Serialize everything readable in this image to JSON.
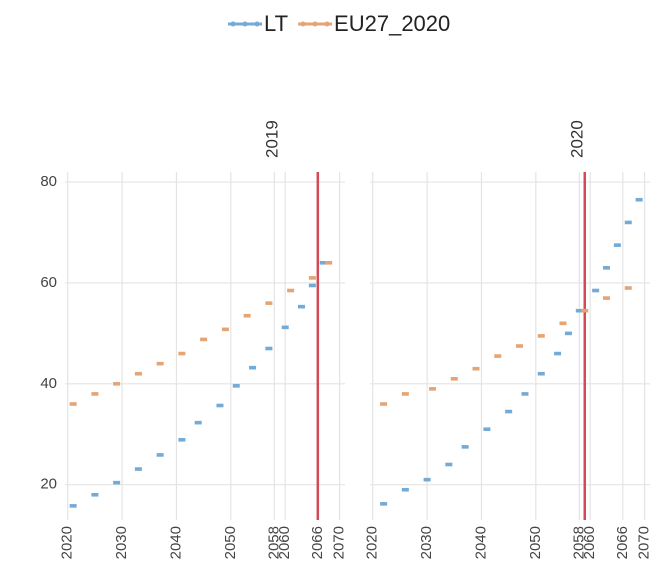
{
  "chart_data": [
    {
      "type": "scatter",
      "title": "2019",
      "xlim": [
        2019.5,
        2071
      ],
      "ylim": [
        13,
        82
      ],
      "xticks": [
        2020,
        2030,
        2040,
        2050,
        2058,
        2060,
        2066,
        2070
      ],
      "yticks": [
        20,
        40,
        60,
        80
      ],
      "grid": true,
      "vline": 2066,
      "vline_color": "#d24a55",
      "legend": "top",
      "series": [
        {
          "name": "LT",
          "color": "#74aad6",
          "x": [
            2021,
            2025,
            2029,
            2033,
            2037,
            2041,
            2044,
            2048,
            2051,
            2054,
            2057,
            2060,
            2063,
            2065,
            2067
          ],
          "values": [
            15.8,
            18,
            20.4,
            23.1,
            25.9,
            28.9,
            32.3,
            35.7,
            39.6,
            43.2,
            47,
            51.2,
            55.3,
            59.5,
            64
          ]
        },
        {
          "name": "EU27_2020",
          "color": "#e4a474",
          "x": [
            2021,
            2025,
            2029,
            2033,
            2037,
            2041,
            2045,
            2049,
            2053,
            2057,
            2061,
            2065,
            2068
          ],
          "values": [
            36,
            38,
            40,
            42,
            44,
            46,
            48.8,
            50.8,
            53.5,
            56,
            58.5,
            61,
            64
          ]
        }
      ]
    },
    {
      "type": "scatter",
      "title": "2020",
      "xlim": [
        2019.5,
        2071
      ],
      "ylim": [
        13,
        82
      ],
      "xticks": [
        2020,
        2030,
        2040,
        2050,
        2058,
        2060,
        2066,
        2070
      ],
      "yticks": [
        20,
        40,
        60,
        80
      ],
      "grid": true,
      "vline": 2059,
      "vline_color": "#d24a55",
      "series": [
        {
          "name": "LT",
          "color": "#74aad6",
          "x": [
            2022,
            2026,
            2030,
            2034,
            2037,
            2041,
            2045,
            2048,
            2051,
            2054,
            2056,
            2058,
            2061,
            2063,
            2065,
            2067,
            2069
          ],
          "values": [
            16.2,
            19,
            21,
            24,
            27.5,
            31,
            34.5,
            38,
            42,
            46,
            50,
            54.5,
            58.5,
            63,
            67.5,
            72,
            76.5
          ]
        },
        {
          "name": "EU27_2020",
          "color": "#e4a474",
          "x": [
            2022,
            2026,
            2031,
            2035,
            2039,
            2043,
            2047,
            2051,
            2055,
            2059,
            2063,
            2067
          ],
          "values": [
            36,
            38,
            39,
            41,
            43,
            45.5,
            47.5,
            49.5,
            52,
            54.5,
            57,
            59
          ]
        }
      ]
    }
  ]
}
